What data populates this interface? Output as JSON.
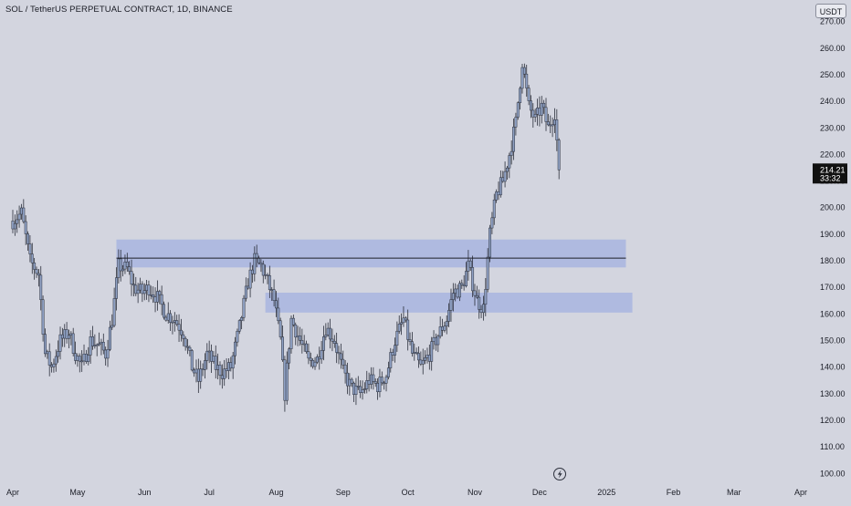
{
  "header": {
    "symbol_title": "SOL / TetherUS PERPETUAL CONTRACT, 1D, BINANCE",
    "currency": "USDT"
  },
  "price_tag": {
    "price": "214.21",
    "countdown": "33:32"
  },
  "colors": {
    "background": "#d3d5df",
    "candle_up": "#8fa1c4",
    "candle_down": "#8fa1c4",
    "wick": "#2b2f3b",
    "zone_fill": "#9aaae0",
    "line": "#1b1d26",
    "price_tag_bg": "#111111"
  },
  "icons": {
    "bolt": "lightning-icon"
  },
  "chart_data": {
    "type": "candlestick",
    "title": "SOL / TetherUS PERPETUAL CONTRACT, 1D, BINANCE",
    "y_ticks": [
      "100.00",
      "110.00",
      "120.00",
      "130.00",
      "140.00",
      "150.00",
      "160.00",
      "170.00",
      "180.00",
      "190.00",
      "200.00",
      "210.00",
      "220.00",
      "230.00",
      "240.00",
      "250.00",
      "260.00",
      "270.00"
    ],
    "ylim": [
      97,
      274
    ],
    "x_ticks": [
      "Apr",
      "May",
      "Jun",
      "Jul",
      "Aug",
      "Sep",
      "Oct",
      "Nov",
      "Dec",
      "2025",
      "Feb",
      "Mar",
      "Apr"
    ],
    "x_tick_dates": [
      "2024-04-01",
      "2024-05-01",
      "2024-06-01",
      "2024-07-01",
      "2024-08-01",
      "2024-09-01",
      "2024-10-01",
      "2024-11-01",
      "2024-12-01",
      "2025-01-01",
      "2025-02-01",
      "2025-03-01",
      "2025-04-01"
    ],
    "last_price": 214.21,
    "zones": [
      {
        "from": "2024-05-19",
        "to": "2025-01-10",
        "low": 177.5,
        "high": 188
      },
      {
        "from": "2024-07-27",
        "to": "2025-01-13",
        "low": 160.5,
        "high": 168
      }
    ],
    "horizontal_line": {
      "from": "2024-05-19",
      "to": "2025-01-10",
      "value": 181
    },
    "close_anchors": [
      [
        "2024-04-01",
        195
      ],
      [
        "2024-04-05",
        198
      ],
      [
        "2024-04-09",
        180
      ],
      [
        "2024-04-13",
        175
      ],
      [
        "2024-04-16",
        145
      ],
      [
        "2024-04-19",
        140
      ],
      [
        "2024-04-23",
        150
      ],
      [
        "2024-04-27",
        153
      ],
      [
        "2024-04-30",
        145
      ],
      [
        "2024-05-03",
        140
      ],
      [
        "2024-05-07",
        150
      ],
      [
        "2024-05-11",
        148
      ],
      [
        "2024-05-14",
        145
      ],
      [
        "2024-05-17",
        158
      ],
      [
        "2024-05-20",
        178
      ],
      [
        "2024-05-24",
        177
      ],
      [
        "2024-05-27",
        170
      ],
      [
        "2024-05-31",
        168
      ],
      [
        "2024-06-03",
        170
      ],
      [
        "2024-06-07",
        166
      ],
      [
        "2024-06-11",
        160
      ],
      [
        "2024-06-15",
        158
      ],
      [
        "2024-06-19",
        153
      ],
      [
        "2024-06-23",
        140
      ],
      [
        "2024-06-26",
        135
      ],
      [
        "2024-06-30",
        145
      ],
      [
        "2024-07-04",
        140
      ],
      [
        "2024-07-07",
        138
      ],
      [
        "2024-07-11",
        140
      ],
      [
        "2024-07-15",
        155
      ],
      [
        "2024-07-19",
        172
      ],
      [
        "2024-07-22",
        180
      ],
      [
        "2024-07-25",
        178
      ],
      [
        "2024-07-28",
        172
      ],
      [
        "2024-07-31",
        165
      ],
      [
        "2024-08-03",
        150
      ],
      [
        "2024-08-05",
        130
      ],
      [
        "2024-08-08",
        158
      ],
      [
        "2024-08-12",
        150
      ],
      [
        "2024-08-16",
        142
      ],
      [
        "2024-08-20",
        143
      ],
      [
        "2024-08-24",
        155
      ],
      [
        "2024-08-28",
        150
      ],
      [
        "2024-09-01",
        138
      ],
      [
        "2024-09-05",
        132
      ],
      [
        "2024-09-09",
        130
      ],
      [
        "2024-09-13",
        135
      ],
      [
        "2024-09-17",
        133
      ],
      [
        "2024-09-21",
        137
      ],
      [
        "2024-09-25",
        150
      ],
      [
        "2024-09-29",
        158
      ],
      [
        "2024-10-03",
        145
      ],
      [
        "2024-10-07",
        140
      ],
      [
        "2024-10-11",
        145
      ],
      [
        "2024-10-15",
        152
      ],
      [
        "2024-10-19",
        158
      ],
      [
        "2024-10-22",
        168
      ],
      [
        "2024-10-26",
        170
      ],
      [
        "2024-10-29",
        178
      ],
      [
        "2024-11-02",
        165
      ],
      [
        "2024-11-05",
        162
      ],
      [
        "2024-11-08",
        190
      ],
      [
        "2024-11-11",
        205
      ],
      [
        "2024-11-14",
        210
      ],
      [
        "2024-11-17",
        220
      ],
      [
        "2024-11-20",
        232
      ],
      [
        "2024-11-23",
        255
      ],
      [
        "2024-11-26",
        238
      ],
      [
        "2024-11-29",
        233
      ],
      [
        "2024-12-02",
        238
      ],
      [
        "2024-12-05",
        230
      ],
      [
        "2024-12-08",
        236
      ],
      [
        "2024-12-10",
        214.21
      ]
    ]
  }
}
